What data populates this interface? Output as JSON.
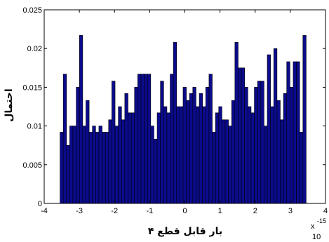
{
  "chart_data": {
    "type": "bar",
    "xlabel": "بار قابل قطع ۴",
    "ylabel": "احتمال",
    "axis_multiplier": {
      "base": "10",
      "exponent": "-15",
      "symbol": "x"
    },
    "xlim": [
      -4,
      4
    ],
    "ylim": [
      0,
      0.025
    ],
    "x_ticks": [
      -4,
      -3,
      -2,
      -1,
      0,
      1,
      2,
      3,
      4
    ],
    "x_tick_labels": [
      "-4",
      "-3",
      "-2",
      "-1",
      "0",
      "1",
      "2",
      "3",
      "4"
    ],
    "y_ticks": [
      0,
      0.005,
      0.01,
      0.015,
      0.02,
      0.025
    ],
    "y_tick_labels": [
      "0",
      "0.005",
      "0.01",
      "0.015",
      "0.02",
      "0.025"
    ],
    "bin_range": [
      -3.55,
      3.45
    ],
    "bar_color": "#0b0b8c",
    "grid": false,
    "values": [
      0.0092,
      0.0167,
      0.0075,
      0.01,
      0.01,
      0.015,
      0.0217,
      0.01,
      0.0133,
      0.0092,
      0.01,
      0.0092,
      0.01,
      0.0092,
      0.0092,
      0.0108,
      0.0158,
      0.01,
      0.0125,
      0.0108,
      0.0142,
      0.0117,
      0.0117,
      0.015,
      0.0167,
      0.0167,
      0.0167,
      0.0167,
      0.01,
      0.0083,
      0.0117,
      0.0158,
      0.0125,
      0.0117,
      0.0167,
      0.0208,
      0.0125,
      0.0125,
      0.015,
      0.0133,
      0.0142,
      0.015,
      0.0125,
      0.0142,
      0.0125,
      0.015,
      0.0167,
      0.0092,
      0.0117,
      0.0125,
      0.0108,
      0.0108,
      0.01,
      0.0133,
      0.0208,
      0.0175,
      0.0175,
      0.015,
      0.0125,
      0.0117,
      0.015,
      0.0158,
      0.0158,
      0.01,
      0.0192,
      0.0125,
      0.02,
      0.0133,
      0.0108,
      0.0142,
      0.0183,
      0.015,
      0.0183,
      0.0183,
      0.0092,
      0.0217
    ]
  }
}
